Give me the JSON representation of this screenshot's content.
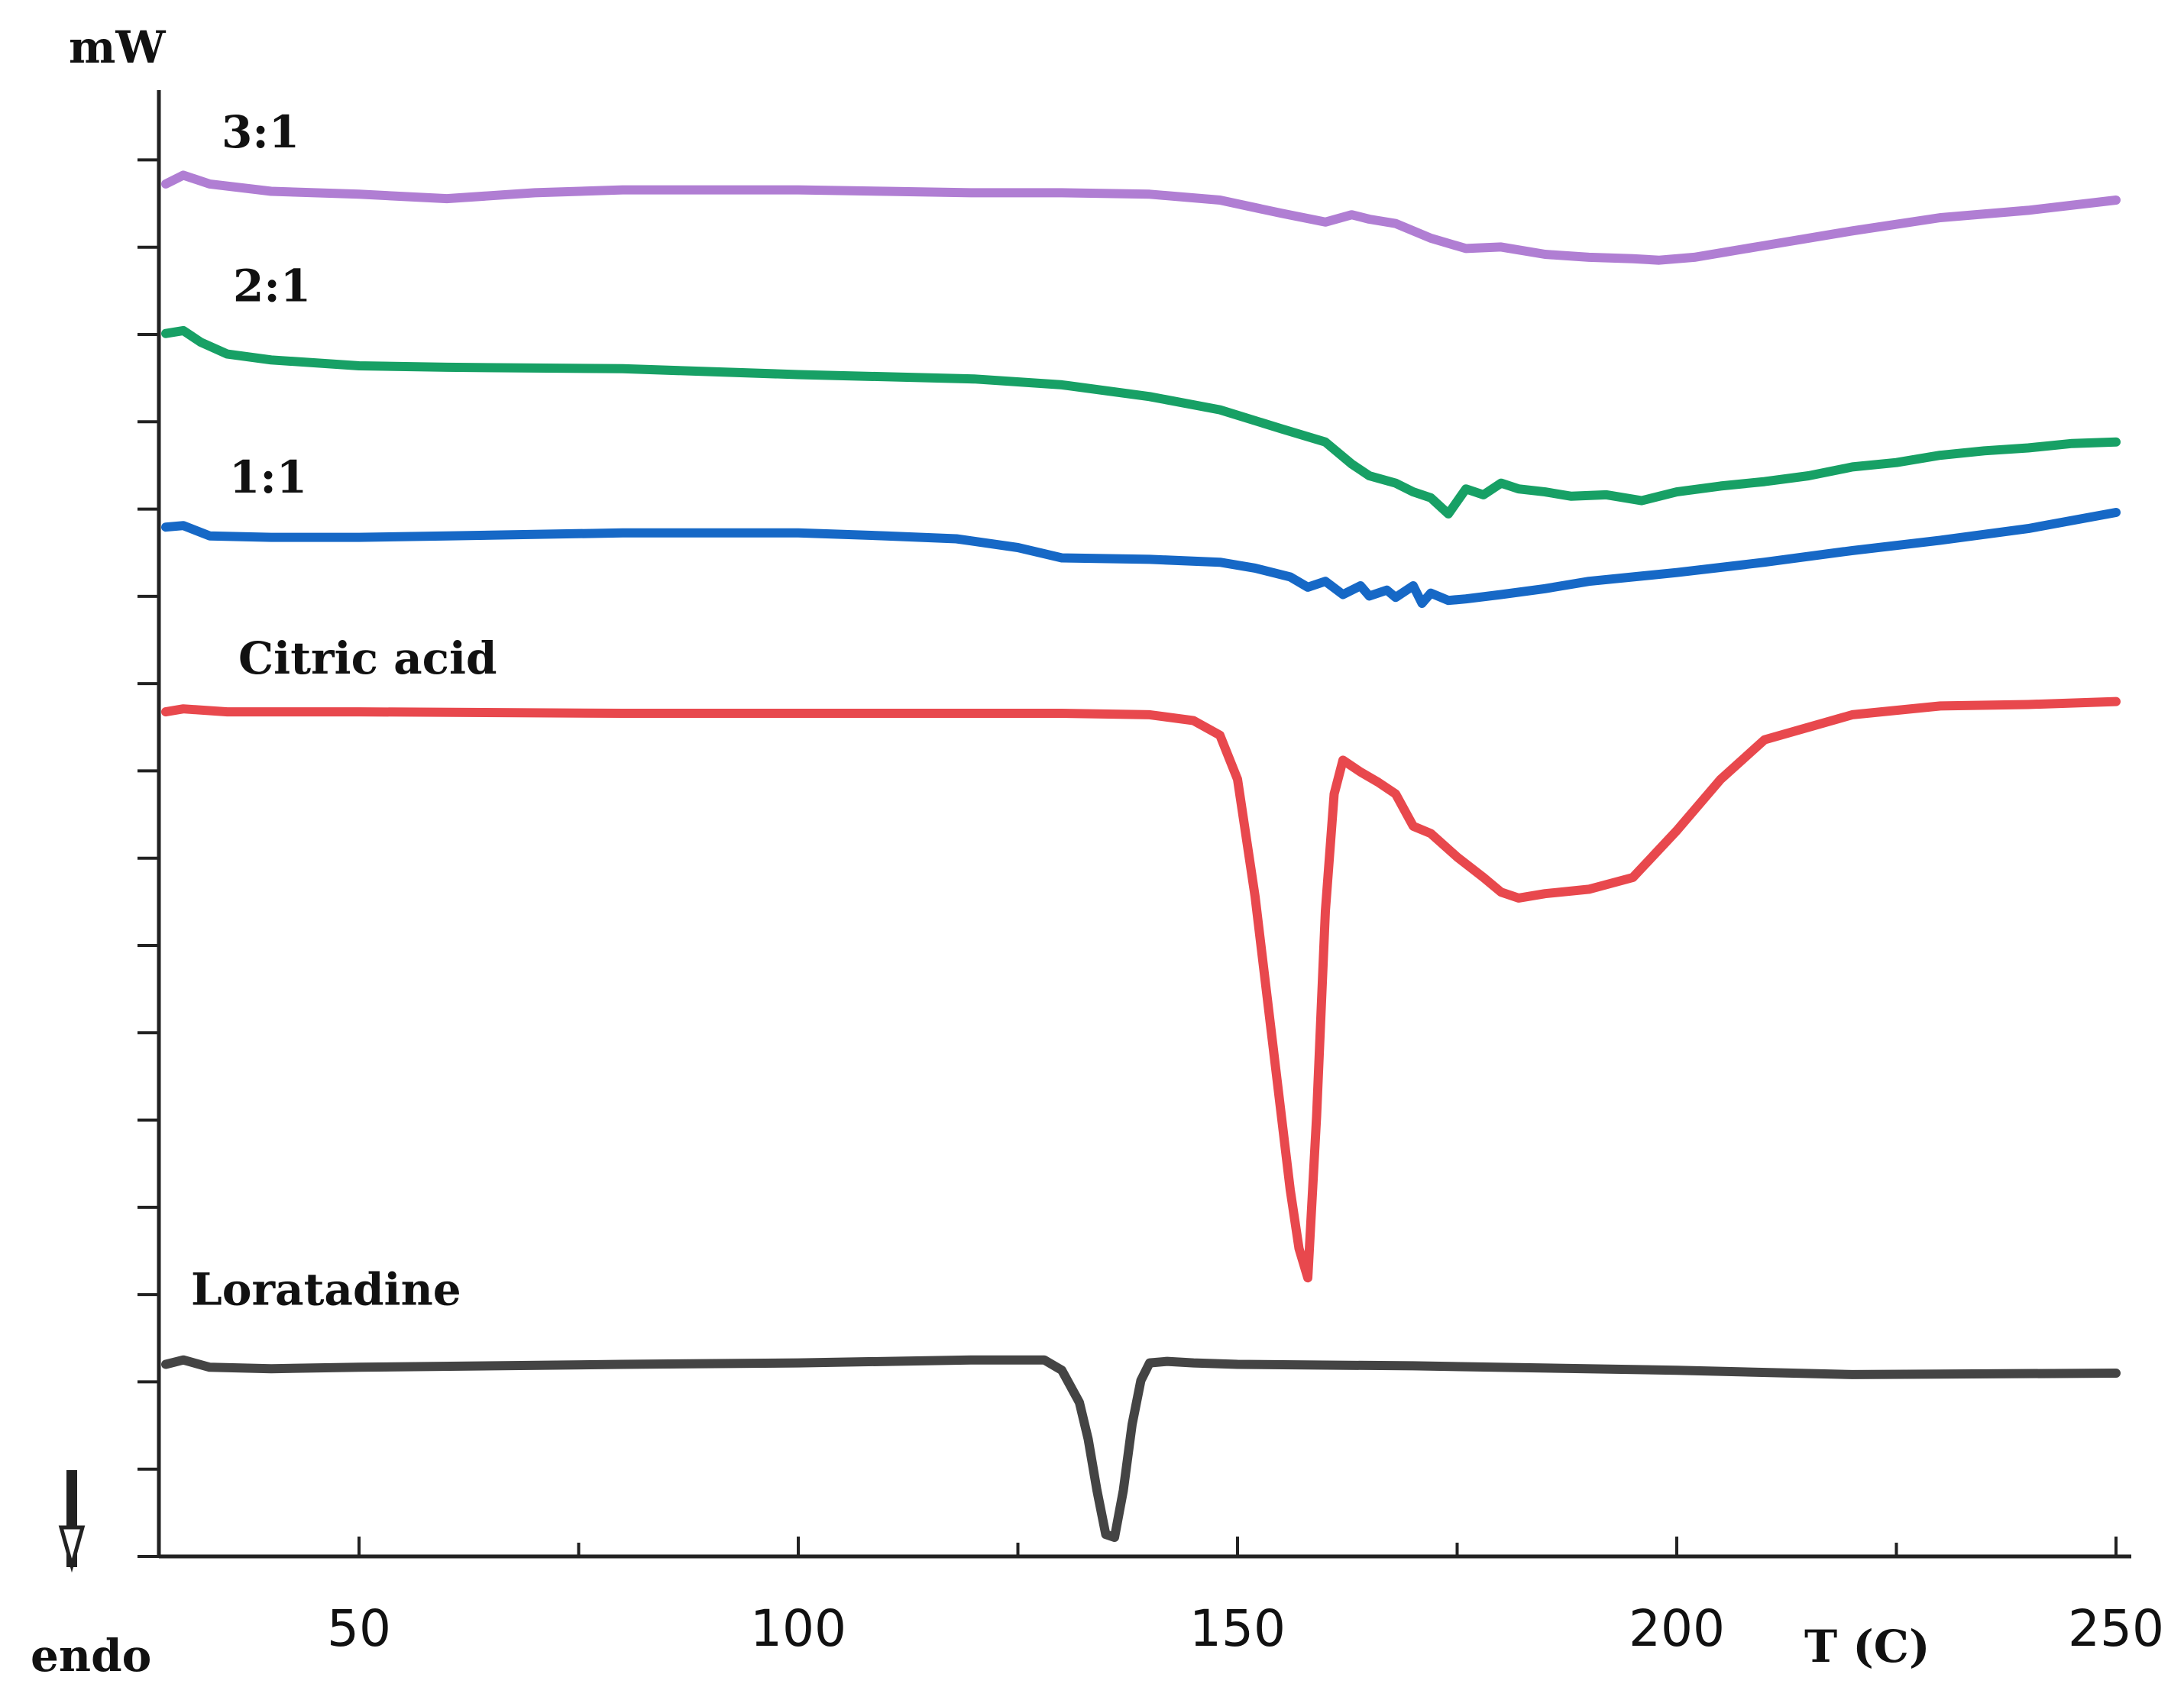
{
  "chart_data": {
    "type": "line",
    "title": "",
    "xlabel": "T (C)",
    "ylabel": "mW",
    "direction_label": "endo",
    "xlim": [
      27,
      250
    ],
    "xticks": [
      50,
      100,
      150,
      200,
      250
    ],
    "ylim": [
      0,
      100
    ],
    "series": [
      {
        "name": "3:1",
        "color": "#b07ed3",
        "x": [
          28,
          30,
          33,
          40,
          50,
          60,
          70,
          80,
          90,
          100,
          110,
          120,
          130,
          140,
          148,
          155,
          160,
          163,
          165,
          168,
          172,
          176,
          180,
          185,
          190,
          195,
          198,
          202,
          210,
          220,
          230,
          240,
          250
        ],
        "y": [
          93.6,
          94.2,
          93.6,
          93.1,
          92.9,
          92.6,
          93.0,
          93.2,
          93.2,
          93.2,
          93.1,
          93.0,
          93.0,
          92.9,
          92.5,
          91.6,
          91.0,
          91.5,
          91.2,
          90.9,
          89.9,
          89.2,
          89.3,
          88.8,
          88.6,
          88.5,
          88.4,
          88.6,
          89.4,
          90.4,
          91.3,
          91.8,
          92.5
        ]
      },
      {
        "name": "2:1",
        "color": "#17a065",
        "x": [
          28,
          30,
          32,
          35,
          40,
          50,
          60,
          80,
          100,
          120,
          130,
          140,
          148,
          155,
          160,
          163,
          165,
          168,
          170,
          172,
          174,
          176,
          178,
          180,
          182,
          185,
          188,
          192,
          196,
          200,
          205,
          210,
          215,
          220,
          225,
          230,
          235,
          240,
          245,
          250
        ],
        "y": [
          83.4,
          83.6,
          82.8,
          82.0,
          81.6,
          81.2,
          81.1,
          81.0,
          80.6,
          80.3,
          79.9,
          79.1,
          78.2,
          76.9,
          76.0,
          74.5,
          73.7,
          73.2,
          72.6,
          72.2,
          71.1,
          72.8,
          72.4,
          73.2,
          72.8,
          72.6,
          72.3,
          72.4,
          72.0,
          72.6,
          73.0,
          73.3,
          73.7,
          74.3,
          74.6,
          75.1,
          75.4,
          75.6,
          75.9,
          76.0
        ]
      },
      {
        "name": "1:1",
        "color": "#1668c6",
        "x": [
          28,
          30,
          33,
          40,
          50,
          60,
          80,
          100,
          110,
          118,
          125,
          130,
          140,
          148,
          152,
          156,
          158,
          160,
          162,
          164,
          165,
          167,
          168,
          170,
          171,
          172,
          174,
          176,
          180,
          185,
          190,
          200,
          210,
          220,
          230,
          240,
          250
        ],
        "y": [
          70.2,
          70.3,
          69.6,
          69.5,
          69.5,
          69.6,
          69.8,
          69.8,
          69.6,
          69.4,
          68.8,
          68.1,
          68.0,
          67.8,
          67.4,
          66.8,
          66.1,
          66.5,
          65.6,
          66.2,
          65.5,
          65.9,
          65.4,
          66.2,
          65.0,
          65.7,
          65.2,
          65.3,
          65.6,
          66.0,
          66.5,
          67.1,
          67.8,
          68.6,
          69.3,
          70.1,
          71.2
        ]
      },
      {
        "name": "Citric acid",
        "color": "#e8484d",
        "x": [
          28,
          30,
          35,
          50,
          80,
          100,
          120,
          130,
          140,
          145,
          148,
          150,
          152,
          154,
          156,
          157,
          158,
          159,
          160,
          161,
          162,
          164,
          166,
          168,
          170,
          172,
          175,
          178,
          180,
          182,
          185,
          190,
          195,
          200,
          205,
          210,
          220,
          230,
          240,
          250
        ],
        "y": [
          57.6,
          57.8,
          57.6,
          57.6,
          57.5,
          57.5,
          57.5,
          57.5,
          57.4,
          57.0,
          56.0,
          53.0,
          45.0,
          35.0,
          25.0,
          21.0,
          19.0,
          30.0,
          44.0,
          52.0,
          54.3,
          53.5,
          52.8,
          52.0,
          49.8,
          49.3,
          47.7,
          46.3,
          45.3,
          44.9,
          45.2,
          45.5,
          46.3,
          49.5,
          53.0,
          55.7,
          57.4,
          58.0,
          58.1,
          58.3
        ]
      },
      {
        "name": "Loratadine",
        "color": "#444444",
        "x": [
          28,
          30,
          33,
          40,
          50,
          80,
          100,
          120,
          128,
          130,
          132,
          133,
          134,
          135,
          136,
          137,
          138,
          139,
          140,
          142,
          145,
          150,
          170,
          200,
          220,
          250
        ],
        "y": [
          13.1,
          13.4,
          12.9,
          12.8,
          12.9,
          13.1,
          13.2,
          13.4,
          13.4,
          12.7,
          10.5,
          8.0,
          4.5,
          1.5,
          1.3,
          4.5,
          9.0,
          12.0,
          13.2,
          13.3,
          13.2,
          13.1,
          13.0,
          12.7,
          12.4,
          12.5
        ]
      }
    ]
  }
}
